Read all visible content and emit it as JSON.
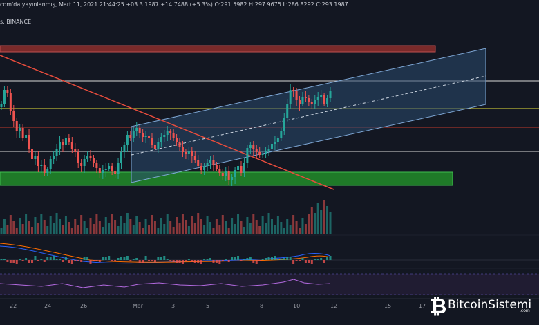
{
  "header": {
    "published_line": "3.1987  +14.7488 (+5.3%)  O:291.5982  H:297.9675  L:286.8292  C:293.1987",
    "attribution": "com'da yayınlanmış, Mart 11, 2021 21:44:25 +03",
    "symbol_suffix": "s, BINANCE"
  },
  "x_axis": {
    "labels": [
      "22",
      "24",
      "26",
      "Mar",
      "3",
      "5",
      "8",
      "10",
      "12",
      "15",
      "17"
    ]
  },
  "logo": {
    "brand": "BitcoinSistemi",
    "suffix": ".com"
  },
  "colors": {
    "background": "#131722",
    "up": "#26a69a",
    "down": "#ef5350",
    "channel": "#5a8fc4",
    "support_zone": "#1f8a2a",
    "resistance_zone": "#7a2a2a"
  }
}
